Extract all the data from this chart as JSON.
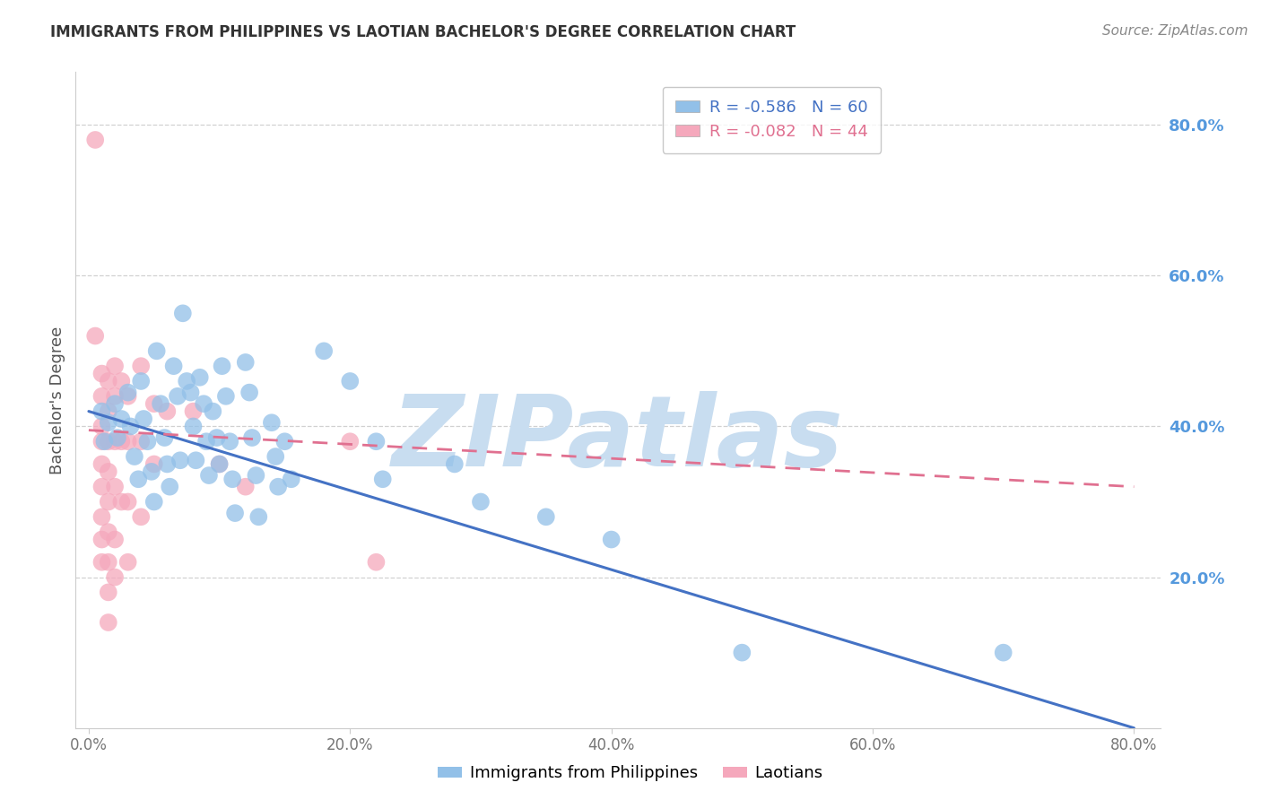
{
  "title": "IMMIGRANTS FROM PHILIPPINES VS LAOTIAN BACHELOR'S DEGREE CORRELATION CHART",
  "source": "Source: ZipAtlas.com",
  "ylabel": "Bachelor's Degree",
  "right_ytick_labels": [
    "20.0%",
    "40.0%",
    "60.0%",
    "80.0%"
  ],
  "right_ytick_values": [
    20.0,
    40.0,
    60.0,
    80.0
  ],
  "xtick_labels": [
    "0.0%",
    "20.0%",
    "40.0%",
    "60.0%",
    "80.0%"
  ],
  "xtick_values": [
    0.0,
    20.0,
    40.0,
    60.0,
    80.0
  ],
  "xlim": [
    -1.0,
    82.0
  ],
  "ylim": [
    0.0,
    87.0
  ],
  "legend_blue_r": "R = -0.586",
  "legend_blue_n": "N = 60",
  "legend_pink_r": "R = -0.082",
  "legend_pink_n": "N = 44",
  "blue_color": "#92c0e8",
  "pink_color": "#f5a8bc",
  "blue_line_color": "#4472c4",
  "pink_line_color": "#e07090",
  "blue_scatter": [
    [
      1.0,
      42.0
    ],
    [
      1.2,
      38.0
    ],
    [
      1.5,
      40.5
    ],
    [
      2.0,
      43.0
    ],
    [
      2.2,
      38.5
    ],
    [
      2.5,
      41.0
    ],
    [
      3.0,
      44.5
    ],
    [
      3.2,
      40.0
    ],
    [
      3.5,
      36.0
    ],
    [
      3.8,
      33.0
    ],
    [
      4.0,
      46.0
    ],
    [
      4.2,
      41.0
    ],
    [
      4.5,
      38.0
    ],
    [
      4.8,
      34.0
    ],
    [
      5.0,
      30.0
    ],
    [
      5.2,
      50.0
    ],
    [
      5.5,
      43.0
    ],
    [
      5.8,
      38.5
    ],
    [
      6.0,
      35.0
    ],
    [
      6.2,
      32.0
    ],
    [
      6.5,
      48.0
    ],
    [
      6.8,
      44.0
    ],
    [
      7.0,
      35.5
    ],
    [
      7.2,
      55.0
    ],
    [
      7.5,
      46.0
    ],
    [
      7.8,
      44.5
    ],
    [
      8.0,
      40.0
    ],
    [
      8.2,
      35.5
    ],
    [
      8.5,
      46.5
    ],
    [
      8.8,
      43.0
    ],
    [
      9.0,
      38.0
    ],
    [
      9.2,
      33.5
    ],
    [
      9.5,
      42.0
    ],
    [
      9.8,
      38.5
    ],
    [
      10.0,
      35.0
    ],
    [
      10.2,
      48.0
    ],
    [
      10.5,
      44.0
    ],
    [
      10.8,
      38.0
    ],
    [
      11.0,
      33.0
    ],
    [
      11.2,
      28.5
    ],
    [
      12.0,
      48.5
    ],
    [
      12.3,
      44.5
    ],
    [
      12.5,
      38.5
    ],
    [
      12.8,
      33.5
    ],
    [
      13.0,
      28.0
    ],
    [
      14.0,
      40.5
    ],
    [
      14.3,
      36.0
    ],
    [
      14.5,
      32.0
    ],
    [
      15.0,
      38.0
    ],
    [
      15.5,
      33.0
    ],
    [
      18.0,
      50.0
    ],
    [
      20.0,
      46.0
    ],
    [
      22.0,
      38.0
    ],
    [
      22.5,
      33.0
    ],
    [
      28.0,
      35.0
    ],
    [
      30.0,
      30.0
    ],
    [
      35.0,
      28.0
    ],
    [
      40.0,
      25.0
    ],
    [
      50.0,
      10.0
    ],
    [
      70.0,
      10.0
    ]
  ],
  "pink_scatter": [
    [
      0.5,
      78.0
    ],
    [
      0.5,
      52.0
    ],
    [
      1.0,
      47.0
    ],
    [
      1.0,
      44.0
    ],
    [
      1.0,
      40.0
    ],
    [
      1.0,
      38.0
    ],
    [
      1.0,
      35.0
    ],
    [
      1.0,
      32.0
    ],
    [
      1.0,
      28.0
    ],
    [
      1.0,
      25.0
    ],
    [
      1.0,
      22.0
    ],
    [
      1.5,
      46.0
    ],
    [
      1.5,
      42.0
    ],
    [
      1.5,
      38.0
    ],
    [
      1.5,
      34.0
    ],
    [
      1.5,
      30.0
    ],
    [
      1.5,
      26.0
    ],
    [
      1.5,
      22.0
    ],
    [
      1.5,
      18.0
    ],
    [
      1.5,
      14.0
    ],
    [
      2.0,
      48.0
    ],
    [
      2.0,
      44.0
    ],
    [
      2.0,
      38.0
    ],
    [
      2.0,
      32.0
    ],
    [
      2.0,
      25.0
    ],
    [
      2.0,
      20.0
    ],
    [
      2.5,
      46.0
    ],
    [
      2.5,
      38.0
    ],
    [
      2.5,
      30.0
    ],
    [
      3.0,
      44.0
    ],
    [
      3.0,
      38.0
    ],
    [
      3.0,
      30.0
    ],
    [
      3.0,
      22.0
    ],
    [
      4.0,
      48.0
    ],
    [
      4.0,
      38.0
    ],
    [
      4.0,
      28.0
    ],
    [
      5.0,
      43.0
    ],
    [
      5.0,
      35.0
    ],
    [
      6.0,
      42.0
    ],
    [
      8.0,
      42.0
    ],
    [
      10.0,
      35.0
    ],
    [
      12.0,
      32.0
    ],
    [
      20.0,
      38.0
    ],
    [
      22.0,
      22.0
    ]
  ],
  "blue_line": [
    [
      0.0,
      42.0
    ],
    [
      80.0,
      0.0
    ]
  ],
  "pink_line": [
    [
      0.0,
      39.5
    ],
    [
      80.0,
      32.0
    ]
  ],
  "watermark_text": "ZIPatlas",
  "watermark_color": "#c8ddf0",
  "background_color": "#ffffff",
  "grid_color": "#cccccc",
  "title_color": "#333333",
  "source_color": "#888888",
  "axis_label_color": "#555555",
  "right_axis_label_color": "#5599dd",
  "bottom_legend_label1": "Immigrants from Philippines",
  "bottom_legend_label2": "Laotians"
}
